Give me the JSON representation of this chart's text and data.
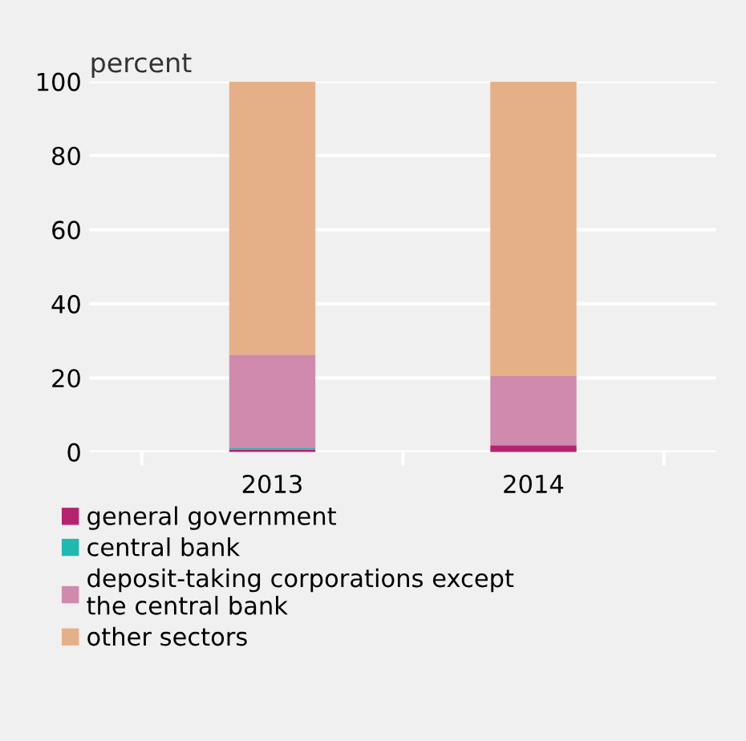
{
  "chart_data": {
    "type": "bar",
    "stacked": true,
    "ylabel": "percent",
    "categories": [
      "2013",
      "2014"
    ],
    "series": [
      {
        "name": "general government",
        "color": "#b5236e",
        "values": [
          0.7,
          1.8
        ]
      },
      {
        "name": "central bank",
        "color": "#20b8b0",
        "values": [
          0.3,
          0
        ]
      },
      {
        "name": "deposit-taking corporations except\nthe central bank",
        "color": "#cf8aad",
        "values": [
          25.3,
          18.7
        ]
      },
      {
        "name": "other sectors",
        "color": "#e5b088",
        "values": [
          73.7,
          79.5
        ]
      }
    ],
    "ylim": [
      0,
      100
    ],
    "yticks": [
      0,
      20,
      40,
      60,
      80,
      100
    ],
    "grid": "y",
    "legend": "bottom"
  }
}
